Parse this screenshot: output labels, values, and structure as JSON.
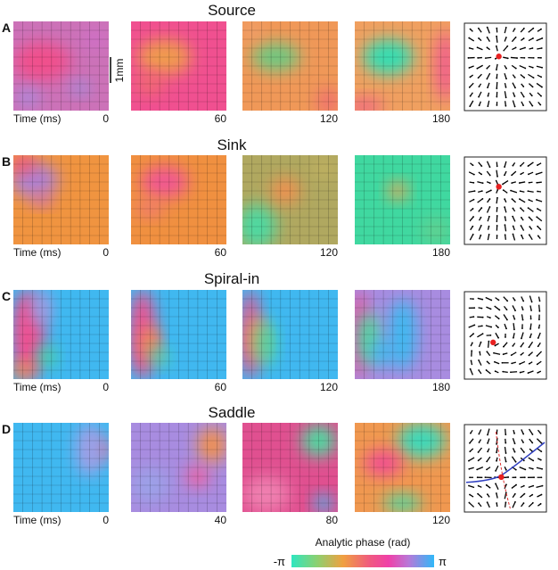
{
  "rows": [
    {
      "letter": "A",
      "title": "Source",
      "times": [
        "0",
        "60",
        "120",
        "180"
      ]
    },
    {
      "letter": "B",
      "title": "Sink",
      "times": [
        "0",
        "60",
        "120",
        "180"
      ]
    },
    {
      "letter": "C",
      "title": "Spiral-in",
      "times": [
        "0",
        "60",
        "120",
        "180"
      ]
    },
    {
      "letter": "D",
      "title": "Saddle",
      "times": [
        "0",
        "40",
        "80",
        "120"
      ]
    }
  ],
  "time_label": "Time (ms)",
  "scale_bar": "1mm",
  "colorbar": {
    "title": "Analytic phase (rad)",
    "min_label": "-π",
    "max_label": "π"
  }
}
